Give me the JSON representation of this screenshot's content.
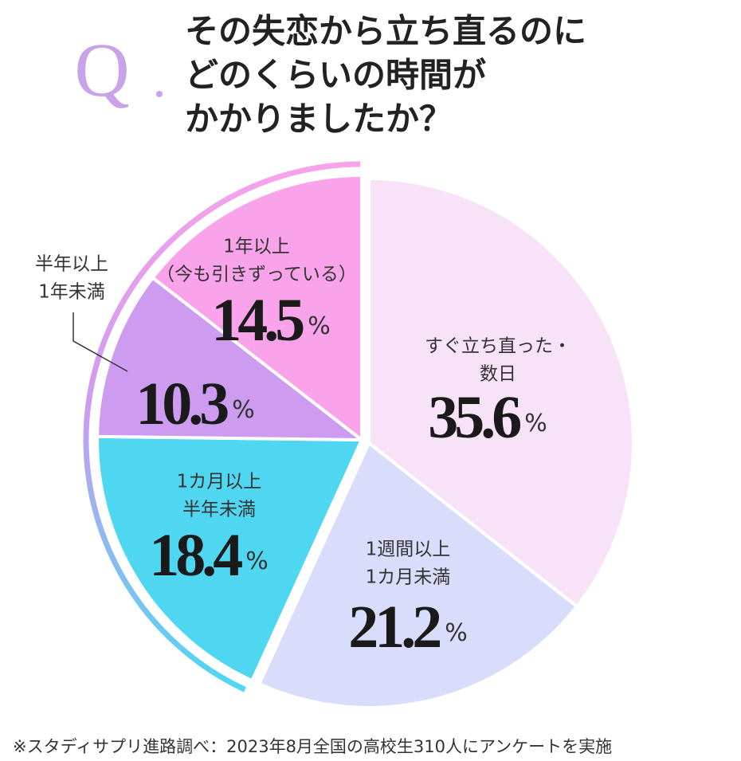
{
  "chart_data": {
    "type": "pie",
    "mark": "Q",
    "title": [
      "その失恋から立ち直るのに",
      "どのくらいの時間が",
      "かかりましたか？"
    ],
    "categories": [
      [
        "すぐ立ち直った・",
        "数日"
      ],
      [
        "1週間以上",
        "1カ月未満"
      ],
      [
        "1カ月以上",
        "半年未満"
      ],
      [
        "半年以上",
        "1年未満"
      ],
      [
        "1年以上",
        "（今も引きずっている）"
      ]
    ],
    "values": [
      35.6,
      21.2,
      18.4,
      10.3,
      14.5
    ],
    "colors": [
      "#f8e2f8",
      "#d9dcfa",
      "#4fd7f1",
      "#cd9cf0",
      "#f8a3ea"
    ],
    "unit": "%",
    "source": "※スタディサプリ進路調べ：2023年8月全国の高校生310人にアンケートを実施"
  }
}
